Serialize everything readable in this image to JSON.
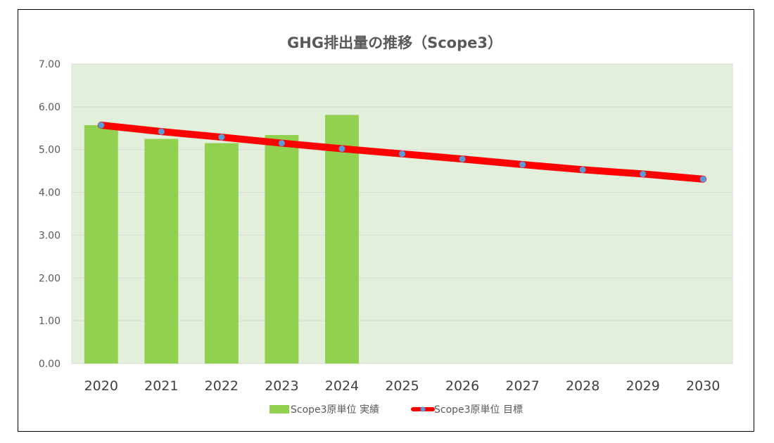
{
  "chart_data": {
    "type": "bar",
    "title": "GHG排出量の推移（Scope3）",
    "categories": [
      "2020",
      "2021",
      "2022",
      "2023",
      "2024",
      "2025",
      "2026",
      "2027",
      "2028",
      "2029",
      "2030"
    ],
    "ylim": [
      0,
      7
    ],
    "yticks": [
      "0.00",
      "1.00",
      "2.00",
      "3.00",
      "4.00",
      "5.00",
      "6.00",
      "7.00"
    ],
    "grid": true,
    "legend_position": "bottom",
    "series": [
      {
        "name": "Scope3原単位 実績",
        "kind": "bar",
        "color": "#92d050",
        "values": [
          5.57,
          5.25,
          5.15,
          5.34,
          5.81,
          null,
          null,
          null,
          null,
          null,
          null
        ]
      },
      {
        "name": "Scope3原単位 目標",
        "kind": "line",
        "color": "#ff0000",
        "marker_color": "#5b9bd5",
        "values": [
          5.57,
          5.42,
          5.29,
          5.15,
          5.02,
          4.9,
          4.78,
          4.65,
          4.53,
          4.43,
          4.31
        ]
      }
    ],
    "colors": {
      "plot_background": "#e2efda",
      "gridline": "#d9d9d9"
    }
  }
}
